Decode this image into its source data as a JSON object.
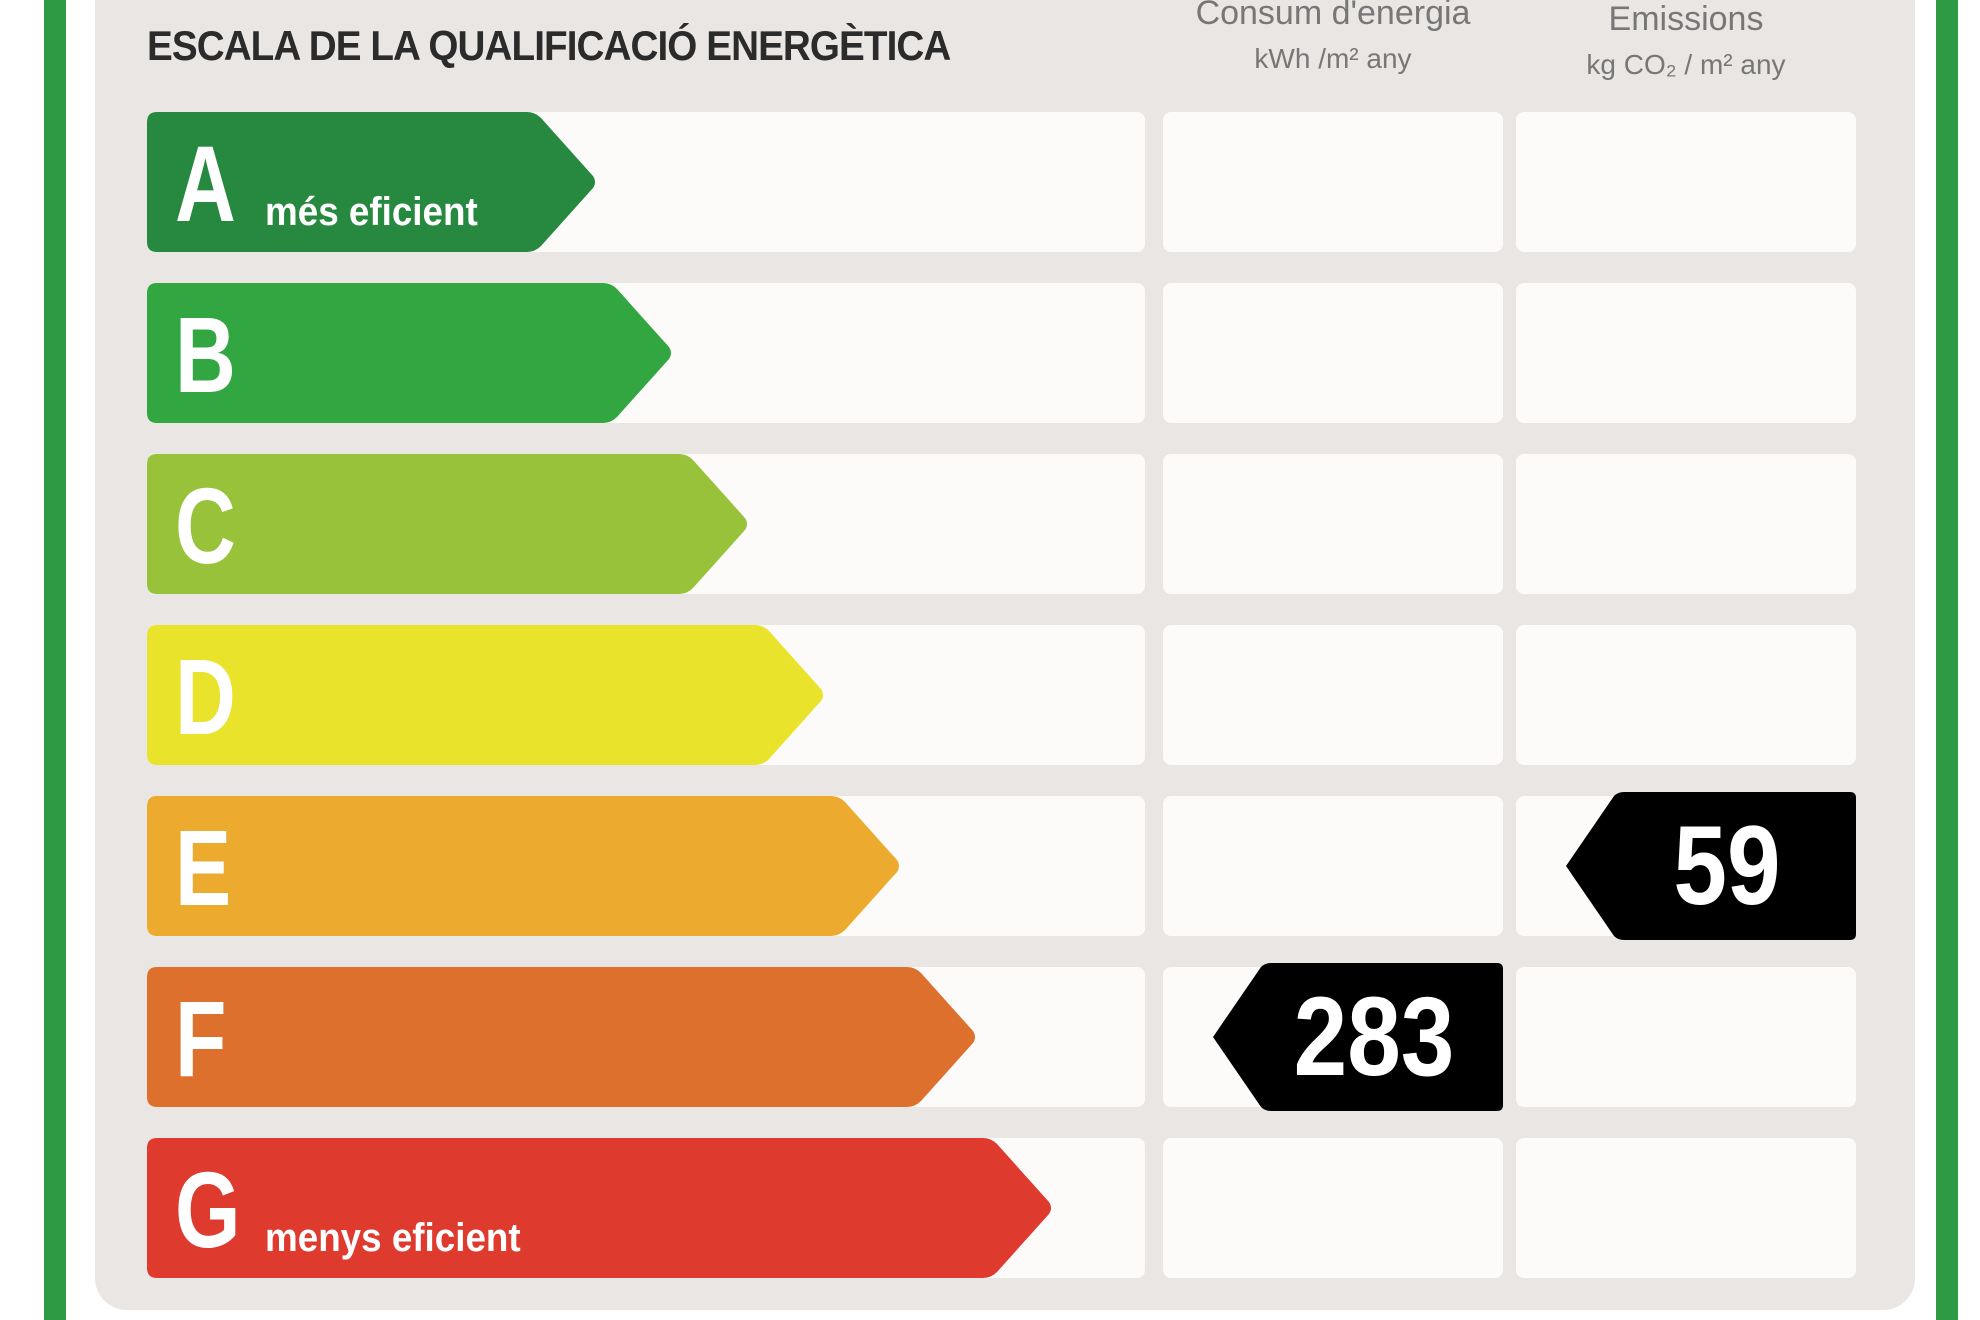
{
  "title": "ESCALA DE LA QUALIFICACIÓ ENERGÈTICA",
  "columns": {
    "energy": {
      "label": "Consum d'energia",
      "unit": "kWh /m² any"
    },
    "emissions": {
      "label": "Emissions",
      "unit": "kg CO₂ / m² any"
    }
  },
  "bands": [
    {
      "letter": "A",
      "label": "més eficient",
      "color": "#27893f"
    },
    {
      "letter": "B",
      "label": "",
      "color": "#31a641"
    },
    {
      "letter": "C",
      "label": "",
      "color": "#98c23a"
    },
    {
      "letter": "D",
      "label": "",
      "color": "#e9e32c"
    },
    {
      "letter": "E",
      "label": "",
      "color": "#ecab2e"
    },
    {
      "letter": "F",
      "label": "",
      "color": "#dc702c"
    },
    {
      "letter": "G",
      "label": "menys eficient",
      "color": "#df3a2e"
    }
  ],
  "ratings": {
    "energy": {
      "band": "F",
      "value": "283"
    },
    "emissions": {
      "band": "E",
      "value": "59"
    }
  },
  "frame_color": "#2e9a44",
  "indicator_color": "#000000"
}
